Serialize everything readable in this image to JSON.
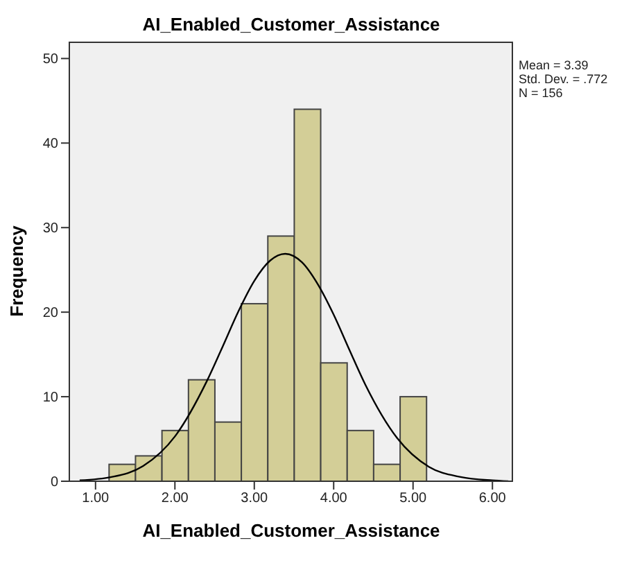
{
  "chart_data": {
    "type": "histogram",
    "title": "AI_Enabled_Customer_Assistance",
    "xlabel": "AI_Enabled_Customer_Assistance",
    "ylabel": "Frequency",
    "bins": [
      1.167,
      1.5,
      1.833,
      2.167,
      2.5,
      2.833,
      3.167,
      3.5,
      3.833,
      4.167,
      4.5,
      4.833,
      5.167
    ],
    "values": [
      2,
      3,
      6,
      12,
      7,
      21,
      29,
      44,
      14,
      6,
      2,
      10
    ],
    "color": "#d3ce97",
    "series": [
      {
        "type": "line",
        "color": "#000000",
        "x": [
          0.8,
          1.2,
          1.6,
          2.0,
          2.4,
          2.6,
          2.8,
          3.0,
          3.2,
          3.39,
          3.6,
          3.8,
          4.0,
          4.2,
          4.4,
          4.8,
          5.2,
          5.6,
          6.0,
          6.2
        ],
        "values": [
          0.1,
          0.5,
          1.8,
          5.3,
          11.8,
          15.9,
          20.1,
          23.7,
          26.1,
          26.9,
          25.9,
          23.3,
          19.7,
          15.5,
          11.4,
          5.1,
          1.7,
          0.5,
          0.1,
          0
        ]
      }
    ],
    "xlim": [
      0.67,
      6.26
    ],
    "xticks": [
      {
        "value": 1,
        "label": "1.00"
      },
      {
        "value": 2,
        "label": "2.00"
      },
      {
        "value": 3,
        "label": "3.00"
      },
      {
        "value": 4,
        "label": "4.00"
      },
      {
        "value": 5,
        "label": "5.00"
      },
      {
        "value": 6,
        "label": "6.00"
      }
    ],
    "ylim": [
      0,
      52
    ],
    "yticks": [
      0,
      10,
      20,
      30,
      40,
      50
    ],
    "annotations": [
      "Mean = 3.39",
      "Std. Dev. = .772",
      "N = 156"
    ]
  }
}
